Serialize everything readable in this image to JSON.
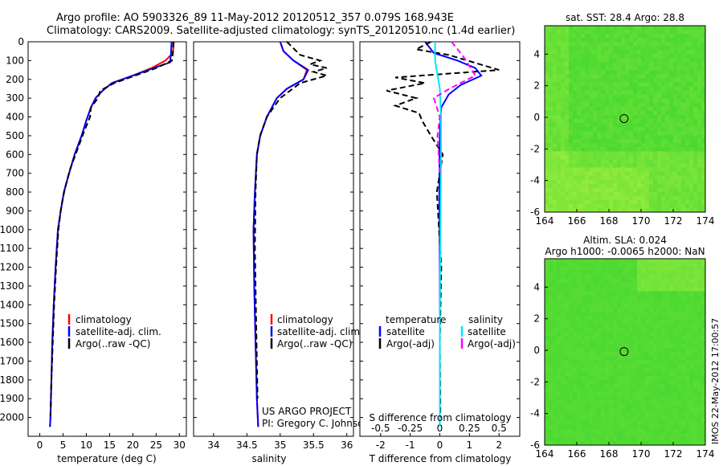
{
  "title": {
    "line1": "Argo profile: AO 5903326_89 11-May-2012 20120512_357 0.079S 168.943E",
    "line2": "Climatology: CARS2009. Satellite-adjusted climatology: synTS_20120510.nc (1.4d earlier)"
  },
  "colors": {
    "climatology": "#ff0000",
    "satellite": "#0000ff",
    "argo": "#000000",
    "sat_salinity": "#00e5ff",
    "argo_salinity": "#ff00ff",
    "map_green": "#3fd630",
    "map_light": "#a8f040"
  },
  "credits": {
    "project": "US ARGO PROJECT",
    "pi": "PI: Gregory C. Johnson",
    "stamp": "IMOS 22-May-2012 17:00:57"
  },
  "chart_data": [
    {
      "type": "line",
      "name": "temperature profile",
      "xlabel": "temperature (deg C)",
      "ylabel": "",
      "xlim": [
        -2.5,
        31.5
      ],
      "ylim": [
        2100,
        0
      ],
      "xticks": [
        "0",
        "5",
        "10",
        "15",
        "20",
        "25",
        "30"
      ],
      "xtick_values": [
        0,
        5,
        10,
        15,
        20,
        25,
        30
      ],
      "yticks": [
        "0",
        "100",
        "200",
        "300",
        "400",
        "500",
        "600",
        "700",
        "800",
        "900",
        "1000",
        "1100",
        "1200",
        "1300",
        "1400",
        "1500",
        "1600",
        "1700",
        "1800",
        "1900",
        "2000"
      ],
      "ytick_values": [
        0,
        100,
        200,
        300,
        400,
        500,
        600,
        700,
        800,
        900,
        1000,
        1100,
        1200,
        1300,
        1400,
        1500,
        1600,
        1700,
        1800,
        1900,
        2000
      ],
      "legend": [
        "climatology",
        "satellite-adj. clim.",
        "Argo(..raw -QC)"
      ],
      "series": [
        {
          "name": "climatology",
          "style": "solid",
          "color": "#ff0000",
          "x": [
            28.8,
            28.6,
            27.0,
            24.0,
            20.0,
            15.5,
            13.5,
            12.0,
            11.0,
            10.0,
            9.0,
            7.5,
            6.3,
            5.2,
            4.5,
            3.9,
            3.4,
            3.0,
            2.7,
            2.5,
            2.3,
            2.2
          ],
          "y": [
            0,
            60,
            100,
            140,
            180,
            220,
            260,
            300,
            350,
            420,
            500,
            600,
            700,
            800,
            900,
            1000,
            1200,
            1400,
            1600,
            1800,
            2000,
            2050
          ]
        },
        {
          "name": "satellite-adj. clim.",
          "style": "solid",
          "color": "#0000ff",
          "x": [
            28.3,
            28.2,
            28.0,
            24.5,
            20.0,
            15.5,
            13.5,
            12.0,
            11.0,
            10.0,
            9.0,
            7.5,
            6.3,
            5.2,
            4.5,
            3.9,
            3.4,
            3.0,
            2.7,
            2.5,
            2.3,
            2.2
          ],
          "y": [
            0,
            60,
            110,
            140,
            180,
            220,
            260,
            300,
            350,
            420,
            500,
            600,
            700,
            800,
            900,
            1000,
            1200,
            1400,
            1600,
            1800,
            2000,
            2050
          ]
        },
        {
          "name": "Argo(..raw -QC)",
          "style": "dashed",
          "color": "#000000",
          "x": [
            28.7,
            28.6,
            28.4,
            25.0,
            20.5,
            16.0,
            13.0,
            12.5,
            11.0,
            10.8,
            9.5,
            8.0,
            6.5,
            5.4,
            4.6,
            4.0,
            3.5,
            3.1,
            2.8,
            2.5,
            2.3
          ],
          "y": [
            0,
            60,
            100,
            140,
            180,
            220,
            260,
            300,
            350,
            400,
            480,
            580,
            680,
            780,
            880,
            1000,
            1200,
            1400,
            1600,
            1800,
            2000
          ]
        }
      ]
    },
    {
      "type": "line",
      "name": "salinity profile",
      "xlabel": "salinity",
      "ylabel": "",
      "xlim": [
        33.7,
        36.1
      ],
      "ylim": [
        2100,
        0
      ],
      "xticks": [
        "34",
        "34.5",
        "35",
        "35.5",
        "36"
      ],
      "xtick_values": [
        34,
        34.5,
        35,
        35.5,
        36
      ],
      "legend": [
        "climatology",
        "satellite-adj. clim.",
        "Argo(..raw -QC)"
      ],
      "series": [
        {
          "name": "climatology",
          "style": "solid",
          "color": "#ff0000",
          "x": [
            35.0,
            35.05,
            35.2,
            35.4,
            35.35,
            35.1,
            34.95,
            34.8,
            34.7,
            34.65,
            34.62,
            34.6,
            34.61,
            34.63,
            34.65,
            34.67
          ],
          "y": [
            0,
            50,
            100,
            150,
            200,
            250,
            300,
            400,
            500,
            600,
            800,
            1000,
            1300,
            1600,
            1900,
            2050
          ]
        },
        {
          "name": "satellite-adj. clim.",
          "style": "solid",
          "color": "#0000ff",
          "x": [
            35.0,
            35.05,
            35.2,
            35.42,
            35.35,
            35.1,
            34.95,
            34.8,
            34.7,
            34.65,
            34.62,
            34.6,
            34.61,
            34.63,
            34.65,
            34.67
          ],
          "y": [
            0,
            50,
            100,
            150,
            200,
            250,
            300,
            400,
            500,
            600,
            800,
            1000,
            1300,
            1600,
            1900,
            2050
          ]
        },
        {
          "name": "Argo(..raw -QC)",
          "style": "dashed",
          "color": "#000000",
          "x": [
            35.1,
            35.3,
            35.6,
            35.45,
            35.7,
            35.5,
            35.7,
            35.3,
            35.0,
            34.8,
            34.7,
            34.65,
            34.63,
            34.62,
            34.64,
            34.66
          ],
          "y": [
            0,
            70,
            100,
            120,
            140,
            160,
            180,
            220,
            300,
            400,
            500,
            600,
            800,
            1100,
            1500,
            1900
          ]
        }
      ]
    },
    {
      "type": "line",
      "name": "difference from climatology",
      "xlabel": "T difference from climatology",
      "xlabel_top": "S difference from climatology",
      "xlim": [
        -2.7,
        2.7
      ],
      "ylim": [
        2100,
        0
      ],
      "xticks": [
        "-2",
        "-1",
        "0",
        "1",
        "2"
      ],
      "xtick_values": [
        -2,
        -1,
        0,
        1,
        2
      ],
      "s_xticks": [
        "-0.5",
        "-0.25",
        "0",
        "0.25",
        "0.5"
      ],
      "s_xtick_values": [
        -0.5,
        -0.25,
        0,
        0.25,
        0.5
      ],
      "legend_titles": [
        "temperature",
        "salinity"
      ],
      "legend": [
        "satellite",
        "Argo(-adj)",
        "satellite",
        "Argo(-adj)"
      ],
      "series": [
        {
          "name": "temperature satellite",
          "style": "solid",
          "color": "#0000ff",
          "x": [
            -0.5,
            -0.2,
            0.6,
            1.2,
            1.4,
            0.7,
            0.3,
            0.05,
            0.0,
            -0.02,
            0.0,
            0.0
          ],
          "y": [
            0,
            60,
            100,
            140,
            180,
            230,
            280,
            350,
            500,
            800,
            1200,
            2050
          ]
        },
        {
          "name": "temperature Argo(-adj)",
          "style": "dashed",
          "color": "#000000",
          "x": [
            -0.3,
            -0.8,
            0.3,
            2.0,
            -1.5,
            -0.5,
            -1.8,
            -0.8,
            -1.5,
            -0.7,
            -0.6,
            -0.3,
            0.1,
            -0.1,
            0.05,
            0.0,
            0.02
          ],
          "y": [
            0,
            40,
            70,
            150,
            190,
            220,
            260,
            300,
            340,
            380,
            420,
            500,
            600,
            800,
            1200,
            1600,
            2000
          ]
        },
        {
          "name": "salinity satellite",
          "style": "solid",
          "color": "#00e5ff",
          "x": [
            -0.04,
            -0.04,
            0.0,
            0.01,
            0.01,
            0.005,
            0.0,
            0.0
          ],
          "y": [
            0,
            100,
            250,
            400,
            600,
            1000,
            1500,
            2050
          ]
        },
        {
          "name": "salinity Argo(-adj)",
          "style": "dashed",
          "color": "#ff00ff",
          "x": [
            0.1,
            0.2,
            0.3,
            0.08,
            -0.05,
            0.0,
            -0.02,
            0.0
          ],
          "y": [
            0,
            80,
            180,
            250,
            300,
            400,
            500,
            700
          ]
        }
      ]
    },
    {
      "type": "heatmap",
      "name": "satellite SST map",
      "title": "sat. SST: 28.4 Argo: 28.8",
      "xticks": [
        "164",
        "166",
        "168",
        "170",
        "172",
        "174"
      ],
      "xtick_values": [
        164,
        166,
        168,
        170,
        172,
        174
      ],
      "yticks": [
        "4",
        "2",
        "0",
        "-2",
        "-4",
        "-6"
      ],
      "ytick_values": [
        4,
        2,
        0,
        -2,
        -4,
        -6
      ],
      "xlim": [
        164,
        174
      ],
      "ylim": [
        -6,
        5.8
      ],
      "argo_position": [
        168.943,
        -0.079
      ]
    },
    {
      "type": "heatmap",
      "name": "altimetry SLA map",
      "title_line1": "Altim. SLA: 0.024",
      "title_line2": "Argo h1000: -0.0065 h2000: NaN",
      "xticks": [
        "164",
        "166",
        "168",
        "170",
        "172",
        "174"
      ],
      "xtick_values": [
        164,
        166,
        168,
        170,
        172,
        174
      ],
      "yticks": [
        "4",
        "2",
        "0",
        "-2",
        "-4",
        "-6"
      ],
      "ytick_values": [
        4,
        2,
        0,
        -2,
        -4,
        -6
      ],
      "xlim": [
        164,
        174
      ],
      "ylim": [
        -6,
        5.8
      ],
      "argo_position": [
        168.943,
        -0.079
      ]
    }
  ]
}
